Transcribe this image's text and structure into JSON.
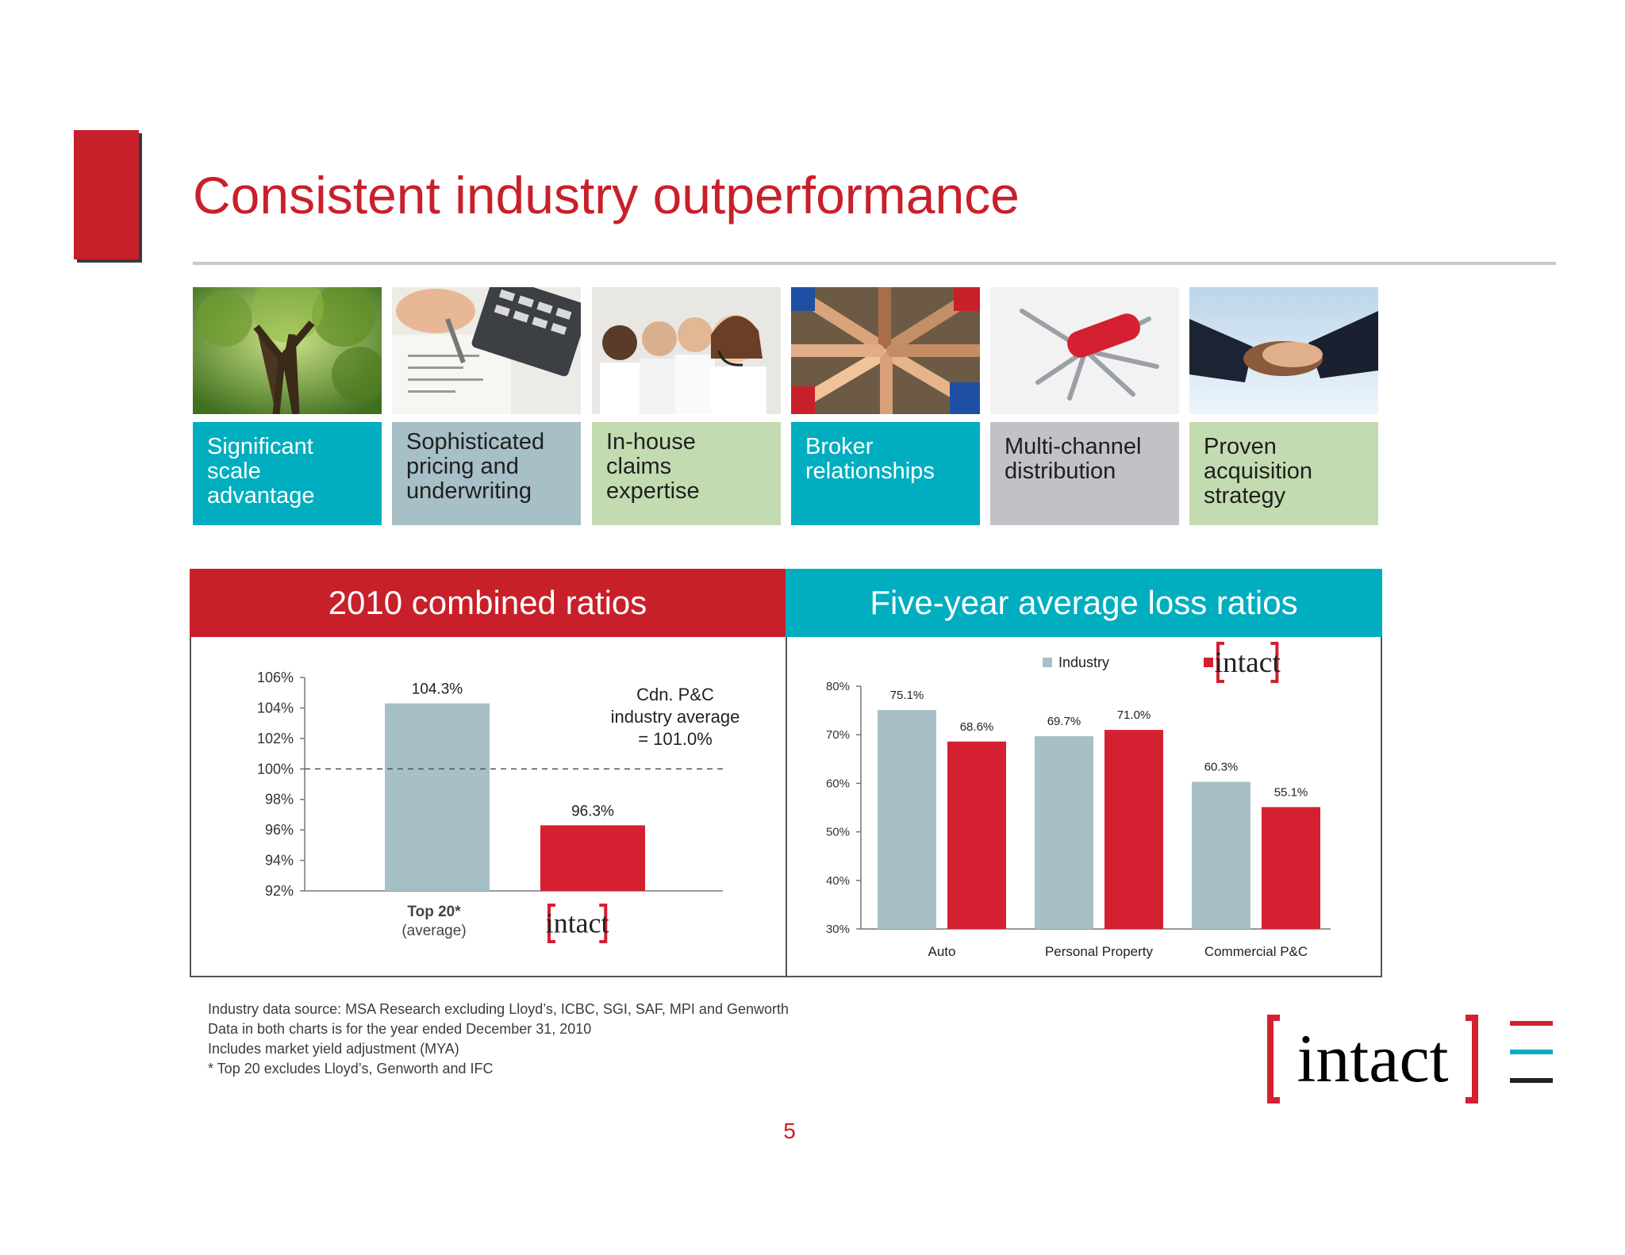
{
  "header": {
    "title": "Consistent industry outperformance"
  },
  "pillars": [
    {
      "lines": [
        "Significant",
        "scale",
        "advantage"
      ],
      "color": "#00aec0",
      "image_icon": "tree-photo"
    },
    {
      "lines": [
        "Sophisticated",
        "pricing and",
        "underwriting"
      ],
      "color": "#a7bfc6",
      "image_icon": "calculator-pen-photo"
    },
    {
      "lines": [
        "In-house claims",
        "expertise"
      ],
      "color": "#c3dbb0",
      "image_icon": "call-center-photo"
    },
    {
      "lines": [
        "Broker",
        "relationships"
      ],
      "color": "#00aec0",
      "image_icon": "joined-hands-photo"
    },
    {
      "lines": [
        "Multi-channel",
        "distribution"
      ],
      "color": "#c2c2c6",
      "image_icon": "swiss-army-knife-photo"
    },
    {
      "lines": [
        "Proven",
        "acquisition",
        "strategy"
      ],
      "color": "#c3dbb0",
      "image_icon": "handshake-photo"
    }
  ],
  "chart_data": [
    {
      "type": "bar",
      "title": "2010 combined ratios",
      "categories": [
        "Top 20*\n(average)",
        "intact"
      ],
      "category_labels": [
        [
          "Top 20*",
          "(average)"
        ]
      ],
      "values": [
        104.3,
        96.3
      ],
      "value_labels": [
        "104.3%",
        "96.3%"
      ],
      "colors": [
        "#a7bfc6",
        "#d42030"
      ],
      "ylim": [
        92,
        106
      ],
      "yticks": [
        "92%",
        "94%",
        "96%",
        "98%",
        "100%",
        "102%",
        "104%",
        "106%"
      ],
      "ytick_values": [
        92,
        94,
        96,
        98,
        100,
        102,
        104,
        106
      ],
      "reference_line": {
        "value": 100,
        "style": "dashed"
      },
      "annotation": [
        "Cdn. P&C",
        "industry average",
        "= 101.0%"
      ],
      "grid": false
    },
    {
      "type": "bar",
      "title": "Five-year average loss ratios",
      "categories": [
        "Auto",
        "Personal Property",
        "Commercial P&C"
      ],
      "series": [
        {
          "name": "Industry",
          "values": [
            75.1,
            69.7,
            60.3
          ],
          "value_labels": [
            "75.1%",
            "69.7%",
            "60.3%"
          ],
          "color": "#a7bfc6"
        },
        {
          "name": "intact",
          "values": [
            68.6,
            71.0,
            55.1
          ],
          "value_labels": [
            "68.6%",
            "71.0%",
            "55.1%"
          ],
          "color": "#d42030"
        }
      ],
      "ylim": [
        30,
        80
      ],
      "yticks": [
        "30%",
        "40%",
        "50%",
        "60%",
        "70%",
        "80%"
      ],
      "ytick_values": [
        30,
        40,
        50,
        60,
        70,
        80
      ],
      "legend": "top-right",
      "grid": false
    }
  ],
  "footnotes": [
    "Industry data  source: MSA Research excluding Lloyd’s, ICBC, SGI, SAF, MPI and Genworth",
    "Data in both charts is for the year ended December 31, 2010",
    "Includes market yield adjustment (MYA)",
    "* Top 20 excludes Lloyd’s, Genworth and IFC"
  ],
  "page_number": "5",
  "logo": {
    "text": "intact",
    "bracket_color": "#d42030",
    "stripe_colors": [
      "#d42030",
      "#00aec0",
      "#222222"
    ]
  }
}
